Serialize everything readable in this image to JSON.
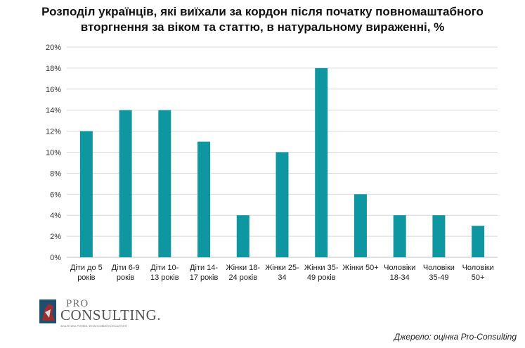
{
  "chart_data": {
    "type": "bar",
    "title_lines": [
      "Розподіл українців, які виїхали за кордон після початку повномаштабного",
      "вторгнення за віком та статтю, в натуральному вираженні, %"
    ],
    "categories": [
      [
        "Діти до 5",
        "років"
      ],
      [
        "Діти 6-9",
        "років"
      ],
      [
        "Діти 10-",
        "13 років"
      ],
      [
        "Діти 14-",
        "17 років"
      ],
      [
        "Жінки 18-",
        "24 років"
      ],
      [
        "Жінки 25-",
        "34"
      ],
      [
        "Жінки 35-",
        "49 років"
      ],
      [
        "Жінки 50+"
      ],
      [
        "Чоловіки",
        "18-34"
      ],
      [
        "Чоловіки",
        "35-49"
      ],
      [
        "Чоловіки",
        "50+"
      ]
    ],
    "values": [
      12,
      14,
      14,
      11,
      4,
      10,
      18,
      6,
      4,
      4,
      3
    ],
    "ylim": [
      0,
      20
    ],
    "yticks": [
      0,
      2,
      4,
      6,
      8,
      10,
      12,
      14,
      16,
      18,
      20
    ],
    "ytick_labels": [
      "0%",
      "2%",
      "4%",
      "6%",
      "8%",
      "10%",
      "12%",
      "14%",
      "16%",
      "18%",
      "20%"
    ],
    "grid": true,
    "bar_color": "#0e97a0"
  },
  "logo": {
    "line1": "PRO",
    "line2": "CONSULTING.",
    "tagline": "АНАЛІТИКА РИНКІВ, ФІНАНСОВИЙ КОНСАЛТИНГ"
  },
  "source": "Джерело: оцінка Pro-Consulting"
}
